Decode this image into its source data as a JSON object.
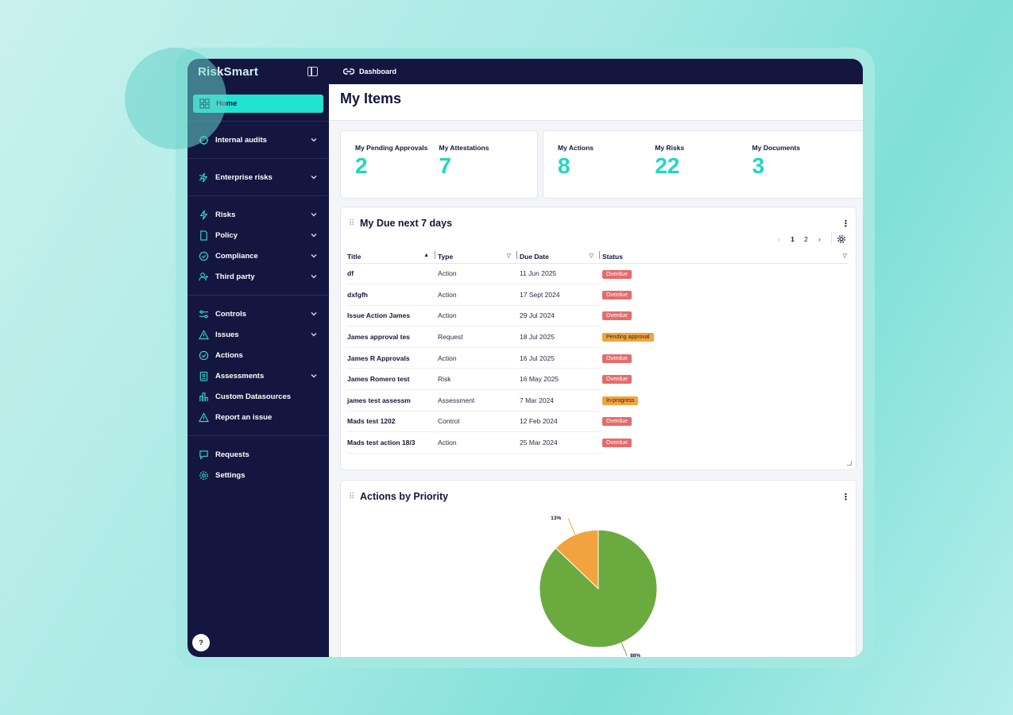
{
  "app": {
    "logo_main": "Risk",
    "logo_accent": "Smart",
    "breadcrumb": "Dashboard",
    "page_title": "My Items",
    "help_label": "?"
  },
  "sidebar": {
    "items": [
      {
        "label": "Home",
        "icon": "grid-icon",
        "active": true
      },
      {
        "label": "Internal audits",
        "icon": "audit-icon",
        "chevron": true
      },
      {
        "label": "Enterprise risks",
        "icon": "enterprise-risk-icon",
        "chevron": true
      },
      {
        "label": "Risks",
        "icon": "lightning-icon",
        "chevron": true
      },
      {
        "label": "Policy",
        "icon": "document-icon",
        "chevron": true
      },
      {
        "label": "Compliance",
        "icon": "check-circle-icon",
        "chevron": true
      },
      {
        "label": "Third party",
        "icon": "user-plus-icon",
        "chevron": true
      },
      {
        "label": "Controls",
        "icon": "sliders-icon",
        "chevron": true
      },
      {
        "label": "Issues",
        "icon": "warning-icon",
        "chevron": true
      },
      {
        "label": "Actions",
        "icon": "check-circle-icon"
      },
      {
        "label": "Assessments",
        "icon": "clipboard-icon",
        "chevron": true
      },
      {
        "label": "Custom Datasources",
        "icon": "bar-chart-icon"
      },
      {
        "label": "Report an issue",
        "icon": "warning-icon"
      },
      {
        "label": "Requests",
        "icon": "chat-icon"
      },
      {
        "label": "Settings",
        "icon": "gear-icon"
      }
    ]
  },
  "stats": {
    "pending_approvals": {
      "label": "My Pending Approvals",
      "value": "2"
    },
    "attestations": {
      "label": "My Attestations",
      "value": "7"
    },
    "actions": {
      "label": "My Actions",
      "value": "8"
    },
    "risks": {
      "label": "My Risks",
      "value": "22"
    },
    "documents": {
      "label": "My Documents",
      "value": "3"
    }
  },
  "due_panel": {
    "title": "My Due next 7 days",
    "pager": {
      "page1": "1",
      "page2": "2"
    },
    "columns": {
      "title": "Title",
      "type": "Type",
      "due_date": "Due Date",
      "status": "Status"
    },
    "rows": [
      {
        "title": "df",
        "type": "Action",
        "due": "11 Jun 2025",
        "status": "Overdue"
      },
      {
        "title": "dxfgfh",
        "type": "Action",
        "due": "17 Sept 2024",
        "status": "Overdue"
      },
      {
        "title": "Issue Action James",
        "type": "Action",
        "due": "29 Jul 2024",
        "status": "Overdue"
      },
      {
        "title": "James approval tes",
        "type": "Request",
        "due": "18 Jul 2025",
        "status": "Pending approval"
      },
      {
        "title": "James R Approvals",
        "type": "Action",
        "due": "16 Jul 2025",
        "status": "Overdue"
      },
      {
        "title": "James Romero test",
        "type": "Risk",
        "due": "16 May 2025",
        "status": "Overdue"
      },
      {
        "title": "james test assessm",
        "type": "Assessment",
        "due": "7 Mar 2024",
        "status": "In-progress"
      },
      {
        "title": "Mads test 1202",
        "type": "Control",
        "due": "12 Feb 2024",
        "status": "Overdue"
      },
      {
        "title": "Mads test action 18/3",
        "type": "Action",
        "due": "25 Mar 2024",
        "status": "Overdue"
      }
    ]
  },
  "pie_panel": {
    "title": "Actions by Priority"
  },
  "colors": {
    "sidebar_bg": "#141640",
    "accent": "#22e3cf",
    "overdue": "#e46c6c",
    "pending": "#f2a33f",
    "pie_green": "#6aaa3e",
    "pie_orange": "#f2a33f"
  },
  "chart_data": {
    "type": "pie",
    "title": "Actions by Priority",
    "slices": [
      {
        "label": "88%",
        "value": 88,
        "color": "#6aaa3e"
      },
      {
        "label": "13%",
        "value": 13,
        "color": "#f2a33f"
      }
    ]
  }
}
